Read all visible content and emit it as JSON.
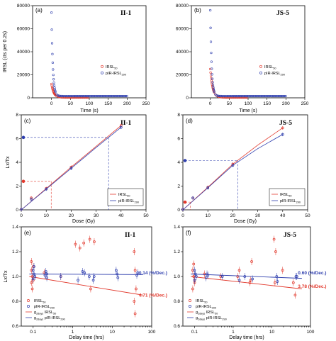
{
  "colors": {
    "red": "#e23a2e",
    "blue": "#2f3fae",
    "black": "#000000",
    "dash_gray": "#444444"
  },
  "chart_data": [
    {
      "id": "a",
      "type": "scatter",
      "panel_label": "(a)",
      "sample": "II-1",
      "xlabel": "Time (s)",
      "ylabel": "IRSL (cts per 0.2s)",
      "xlim": [
        -50,
        250
      ],
      "ylim": [
        0,
        80000
      ],
      "xticks": [
        0,
        50,
        100,
        150,
        200,
        250
      ],
      "yticks": [
        0,
        20000,
        40000,
        60000,
        80000
      ],
      "ytick_labels": [
        "0",
        "20000",
        "40000",
        "60000",
        "80000"
      ],
      "legend_pos": "right",
      "series": [
        {
          "name": "IRSL",
          "sub": "50",
          "color": "#e23a2e",
          "peak": 12000,
          "tail": 300,
          "decay": 6,
          "end": 100
        },
        {
          "name": "pIR-IRSL",
          "sub": "290",
          "color": "#2f3fae",
          "peak": 74000,
          "tail": 1500,
          "decay": 3.5,
          "end": 200
        }
      ]
    },
    {
      "id": "b",
      "type": "scatter",
      "panel_label": "(b)",
      "sample": "JS-5",
      "xlabel": "Time (s)",
      "ylabel": "",
      "xlim": [
        -50,
        250
      ],
      "ylim": [
        0,
        80000
      ],
      "xticks": [
        0,
        50,
        100,
        150,
        200,
        250
      ],
      "yticks": [
        0,
        20000,
        40000,
        60000,
        80000
      ],
      "ytick_labels": [
        "0",
        "20000",
        "40000",
        "60000",
        "80000"
      ],
      "legend_pos": "right",
      "series": [
        {
          "name": "IRSL",
          "sub": "50",
          "color": "#e23a2e",
          "peak": 25000,
          "tail": 300,
          "decay": 6,
          "end": 100
        },
        {
          "name": "pIR-IRSL",
          "sub": "290",
          "color": "#2f3fae",
          "peak": 76000,
          "tail": 1500,
          "decay": 3.5,
          "end": 200
        }
      ]
    },
    {
      "id": "c",
      "type": "line",
      "panel_label": "(c)",
      "sample": "II-1",
      "xlabel": "Dose (Gy)",
      "ylabel": "Lx/Tx",
      "xlim": [
        0,
        50
      ],
      "ylim": [
        0,
        8
      ],
      "xticks": [
        0,
        10,
        20,
        30,
        40,
        50
      ],
      "yticks": [
        0,
        2,
        4,
        6,
        8
      ],
      "legend_pos": "bottom-right",
      "series": [
        {
          "name": "IRSL",
          "sub": "50",
          "color": "#e23a2e",
          "x": [
            0,
            4,
            10,
            20,
            40
          ],
          "y": [
            0.05,
            1.0,
            1.8,
            3.6,
            7.1
          ],
          "curve": [
            [
              0,
              0
            ],
            [
              10,
              1.8
            ],
            [
              20,
              3.6
            ],
            [
              30,
              5.35
            ],
            [
              40,
              7.1
            ]
          ],
          "natural": 2.4,
          "de": 12
        },
        {
          "name": "pIR-IRSL",
          "sub": "290",
          "color": "#2f3fae",
          "x": [
            0,
            4,
            10,
            20,
            40
          ],
          "y": [
            0.05,
            0.9,
            1.75,
            3.5,
            6.95
          ],
          "curve": [
            [
              0,
              0
            ],
            [
              10,
              1.75
            ],
            [
              20,
              3.5
            ],
            [
              30,
              5.25
            ],
            [
              40,
              6.95
            ]
          ],
          "natural": 6.1,
          "de": 35
        }
      ]
    },
    {
      "id": "d",
      "type": "line",
      "panel_label": "(d)",
      "sample": "JS-5",
      "xlabel": "Dose (Gy)",
      "ylabel": "",
      "xlim": [
        0,
        50
      ],
      "ylim": [
        0,
        8
      ],
      "xticks": [
        0,
        10,
        20,
        30,
        40,
        50
      ],
      "yticks": [
        0,
        2,
        4,
        6,
        8
      ],
      "legend_pos": "bottom-right",
      "series": [
        {
          "name": "IRSL",
          "sub": "50",
          "color": "#e23a2e",
          "x": [
            0,
            4,
            10,
            20,
            40
          ],
          "y": [
            0.05,
            1.0,
            1.9,
            3.85,
            6.9
          ],
          "curve": [
            [
              0,
              0
            ],
            [
              10,
              1.9
            ],
            [
              20,
              3.85
            ],
            [
              30,
              5.45
            ],
            [
              40,
              6.9
            ]
          ],
          "natural": 0.65,
          "de": 3
        },
        {
          "name": "pIR-IRSL",
          "sub": "290",
          "color": "#2f3fae",
          "x": [
            0,
            4,
            10,
            20,
            40
          ],
          "y": [
            0.05,
            1.0,
            1.85,
            3.75,
            6.35
          ],
          "curve": [
            [
              0,
              0
            ],
            [
              10,
              1.85
            ],
            [
              20,
              3.75
            ],
            [
              30,
              5.15
            ],
            [
              40,
              6.35
            ]
          ],
          "natural": 4.15,
          "de": 22
        }
      ]
    },
    {
      "id": "e",
      "type": "scatter",
      "panel_label": "(e)",
      "sample": "II-1",
      "xlabel": "Delay time (hrs)",
      "ylabel": "Lx/Tx",
      "xscale": "log",
      "xlim": [
        0.05,
        100
      ],
      "ylim": [
        0.6,
        1.4
      ],
      "xticks": [
        0.1,
        1,
        10,
        100
      ],
      "xtick_labels": [
        "0.1",
        "1",
        "10",
        "100"
      ],
      "yticks": [
        0.6,
        0.8,
        1.0,
        1.2,
        1.4
      ],
      "ytick_labels": [
        "0.6",
        "0.8",
        "1.0",
        "1.2",
        "1.4"
      ],
      "legend_pos": "bottom-left",
      "legend": [
        {
          "label": "IRSL",
          "sub": "50",
          "kind": "marker",
          "color": "#e23a2e"
        },
        {
          "label": "pIR-IRSL",
          "sub": "290",
          "kind": "marker",
          "color": "#2f3fae"
        },
        {
          "label": "g",
          "sub": "2days",
          "label2": "IRSL",
          "sub2": "50",
          "kind": "line",
          "color": "#e23a2e"
        },
        {
          "label": "g",
          "sub": "2days",
          "label2": "pIR-IRSL",
          "sub2": "290",
          "kind": "line",
          "color": "#2f3fae"
        }
      ],
      "series": [
        {
          "name": "IRSL",
          "sub": "50",
          "color": "#e23a2e",
          "x": [
            0.1,
            0.1,
            0.1,
            0.1,
            0.1,
            0.1,
            0.1,
            0.2,
            0.5,
            1.3,
            1.6,
            1.9,
            3,
            3,
            3.5,
            40,
            40,
            40,
            40,
            40
          ],
          "y": [
            1.05,
            1.0,
            0.97,
            0.95,
            0.9,
            1.08,
            1.12,
            1.03,
            1.0,
            1.26,
            1.23,
            1.27,
            1.3,
            0.9,
            1.28,
            1.2,
            1.05,
            0.9,
            0.8,
            0.7
          ],
          "fit_y": [
            1.0,
            0.85
          ]
        },
        {
          "name": "pIR-IRSL",
          "sub": "290",
          "color": "#2f3fae",
          "x": [
            0.1,
            0.1,
            0.1,
            0.1,
            0.1,
            0.2,
            0.2,
            0.2,
            0.2,
            0.5,
            1.3,
            1.6,
            2,
            2.5,
            3,
            3.5,
            12,
            12,
            14,
            40,
            40
          ],
          "y": [
            1.05,
            1.02,
            1.0,
            0.98,
            1.08,
            1.02,
            1.01,
            1.04,
            0.99,
            1.0,
            0.97,
            1.04,
            1.03,
            1.0,
            0.97,
            1.0,
            1.05,
            1.02,
            0.99,
            1.01,
            1.03
          ],
          "fit_y": [
            1.02,
            1.015
          ]
        }
      ],
      "annotations": [
        {
          "text": "0.14 (%/Dec.)",
          "x": 40,
          "y": 1.03,
          "color": "#2f3fae"
        },
        {
          "text": "4.71 (%/Dec.)",
          "x": 40,
          "y": 0.85,
          "color": "#e23a2e"
        }
      ]
    },
    {
      "id": "f",
      "type": "scatter",
      "panel_label": "(f)",
      "sample": "JS-5",
      "xlabel": "Delay time (hrs)",
      "ylabel": "",
      "xscale": "log",
      "xlim": [
        0.05,
        100
      ],
      "ylim": [
        0.6,
        1.4
      ],
      "xticks": [
        0.1,
        1,
        10,
        100
      ],
      "xtick_labels": [
        "0.1",
        "1",
        "10",
        "100"
      ],
      "yticks": [
        0.6,
        0.8,
        1.0,
        1.2,
        1.4
      ],
      "ytick_labels": [
        "0.6",
        "0.8",
        "1.0",
        "1.2",
        "1.4"
      ],
      "legend_pos": "bottom-left",
      "legend": [
        {
          "label": "IRSL",
          "sub": "50",
          "kind": "marker",
          "color": "#e23a2e"
        },
        {
          "label": "pIR-IRSL",
          "sub": "290",
          "kind": "marker",
          "color": "#2f3fae"
        },
        {
          "label": "g",
          "sub": "2days",
          "label2": "IRSL",
          "sub2": "50",
          "kind": "line",
          "color": "#e23a2e"
        },
        {
          "label": "g",
          "sub": "2days",
          "label2": "pIR-IRSL",
          "sub2": "290",
          "kind": "line",
          "color": "#2f3fae"
        }
      ],
      "series": [
        {
          "name": "IRSL",
          "sub": "50",
          "color": "#e23a2e",
          "x": [
            0.1,
            0.1,
            0.1,
            0.1,
            0.1,
            0.1,
            0.2,
            0.5,
            1.3,
            1.6,
            3,
            3,
            3,
            12,
            12,
            14,
            20,
            40,
            40
          ],
          "y": [
            1.05,
            1.0,
            0.97,
            0.9,
            1.1,
            0.95,
            1.02,
            1.0,
            1.0,
            1.05,
            0.97,
            1.12,
            0.95,
            1.3,
            0.95,
            1.2,
            1.05,
            0.85,
            0.95
          ],
          "fit_y": [
            1.0,
            0.9
          ]
        },
        {
          "name": "pIR-IRSL",
          "sub": "290",
          "color": "#2f3fae",
          "x": [
            0.1,
            0.1,
            0.1,
            0.1,
            0.2,
            0.2,
            0.2,
            0.5,
            1.3,
            2,
            3,
            12,
            14,
            40,
            40
          ],
          "y": [
            1.05,
            1.02,
            1.0,
            0.97,
            1.02,
            1.01,
            0.99,
            1.0,
            0.97,
            1.0,
            0.98,
            1.0,
            0.96,
            1.0,
            1.0
          ],
          "fit_y": [
            1.02,
            0.985
          ]
        }
      ],
      "annotations": [
        {
          "text": "0.60 (%/Dec.)",
          "x": 40,
          "y": 1.03,
          "color": "#2f3fae"
        },
        {
          "text": "3.78 (%/Dec.)",
          "x": 40,
          "y": 0.92,
          "color": "#e23a2e"
        }
      ]
    }
  ]
}
